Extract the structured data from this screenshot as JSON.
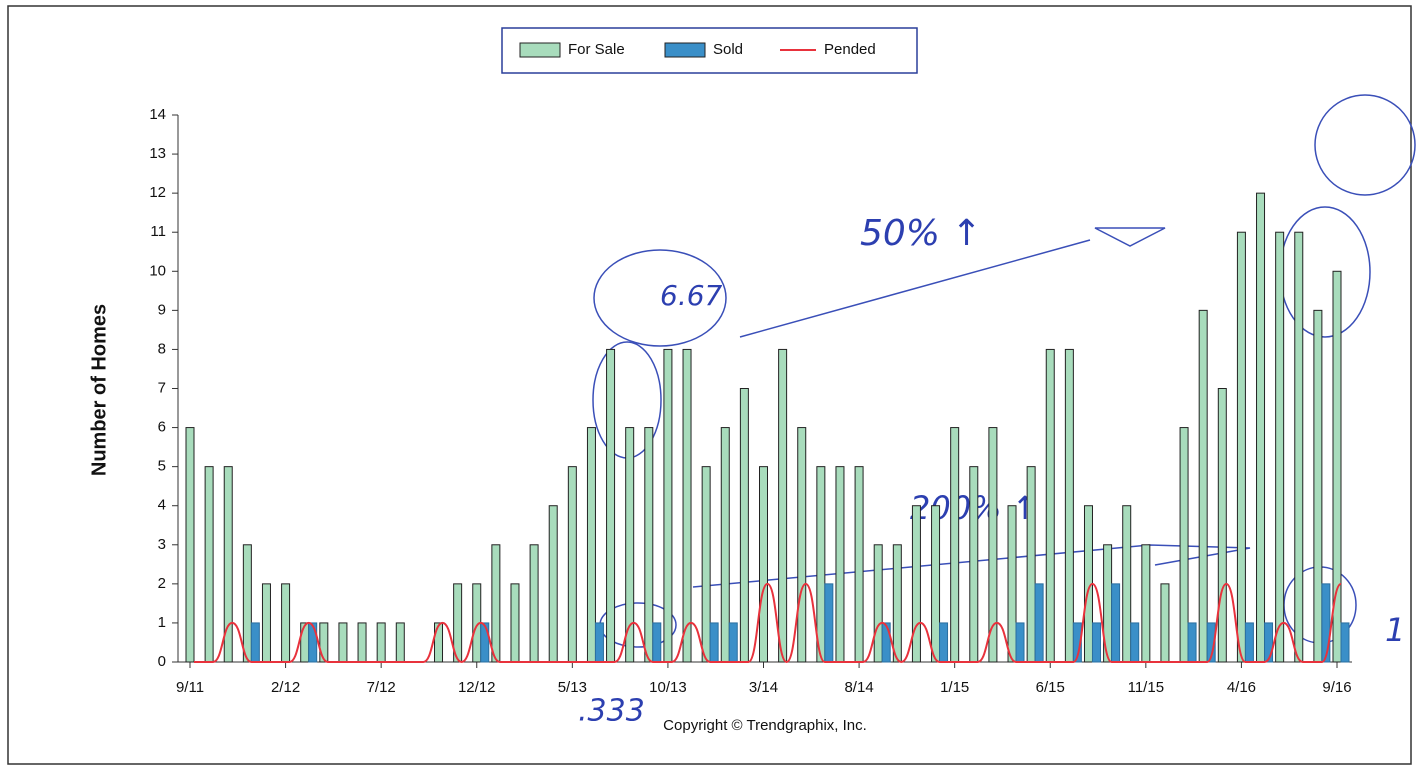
{
  "chart_data": {
    "type": "bar",
    "y_label": "Number of Homes",
    "footer": "Copyright © Trendgraphix, Inc.",
    "annotations": [
      "6.67",
      "50% ↑",
      "200% ↑",
      ".333",
      "1"
    ],
    "categories": [
      "9/11",
      null,
      null,
      null,
      null,
      "2/12",
      null,
      null,
      null,
      null,
      "7/12",
      null,
      null,
      null,
      null,
      "12/12",
      null,
      null,
      null,
      null,
      "5/13",
      null,
      null,
      null,
      null,
      "10/13",
      null,
      null,
      null,
      null,
      "3/14",
      null,
      null,
      null,
      null,
      "8/14",
      null,
      null,
      null,
      null,
      "1/15",
      null,
      null,
      null,
      null,
      "6/15",
      null,
      null,
      null,
      null,
      "11/15",
      null,
      null,
      null,
      null,
      "4/16",
      null,
      null,
      null,
      null,
      "9/16"
    ],
    "series": [
      {
        "name": "For Sale",
        "color": "#a8dcbc",
        "values": [
          6,
          5,
          5,
          3,
          2,
          2,
          1,
          1,
          1,
          1,
          1,
          1,
          0,
          1,
          2,
          2,
          3,
          2,
          3,
          4,
          5,
          6,
          8,
          6,
          6,
          8,
          8,
          5,
          6,
          7,
          5,
          8,
          6,
          5,
          5,
          5,
          3,
          3,
          4,
          4,
          6,
          5,
          6,
          4,
          5,
          8,
          8,
          4,
          3,
          4,
          3,
          2,
          6,
          9,
          7,
          11,
          12,
          11,
          11,
          9,
          10
        ]
      },
      {
        "name": "Sold",
        "color": "#3a8fc8",
        "values": [
          0,
          0,
          0,
          1,
          0,
          0,
          1,
          0,
          0,
          0,
          0,
          0,
          0,
          0,
          0,
          1,
          0,
          0,
          0,
          0,
          0,
          1,
          0,
          0,
          1,
          0,
          0,
          1,
          1,
          0,
          0,
          0,
          0,
          2,
          0,
          0,
          1,
          0,
          0,
          1,
          0,
          0,
          0,
          1,
          2,
          0,
          1,
          1,
          2,
          1,
          0,
          0,
          1,
          1,
          0,
          1,
          1,
          0,
          0,
          2,
          1
        ]
      },
      {
        "name": "Pended",
        "color": "#e8323c",
        "type": "line",
        "values": [
          0,
          0,
          1,
          0,
          0,
          0,
          1,
          0,
          0,
          0,
          0,
          0,
          0,
          1,
          0,
          1,
          0,
          0,
          0,
          0,
          0,
          0,
          0,
          1,
          0,
          0,
          1,
          0,
          0,
          0,
          2,
          0,
          2,
          0,
          0,
          0,
          1,
          0,
          1,
          0,
          0,
          0,
          1,
          0,
          0,
          0,
          0,
          2,
          0,
          0,
          0,
          0,
          0,
          0,
          2,
          0,
          0,
          1,
          0,
          0,
          2
        ]
      }
    ],
    "ylim": [
      0,
      14
    ],
    "yticks": [
      0,
      1,
      2,
      3,
      4,
      5,
      6,
      7,
      8,
      9,
      10,
      11,
      12,
      13,
      14
    ]
  }
}
